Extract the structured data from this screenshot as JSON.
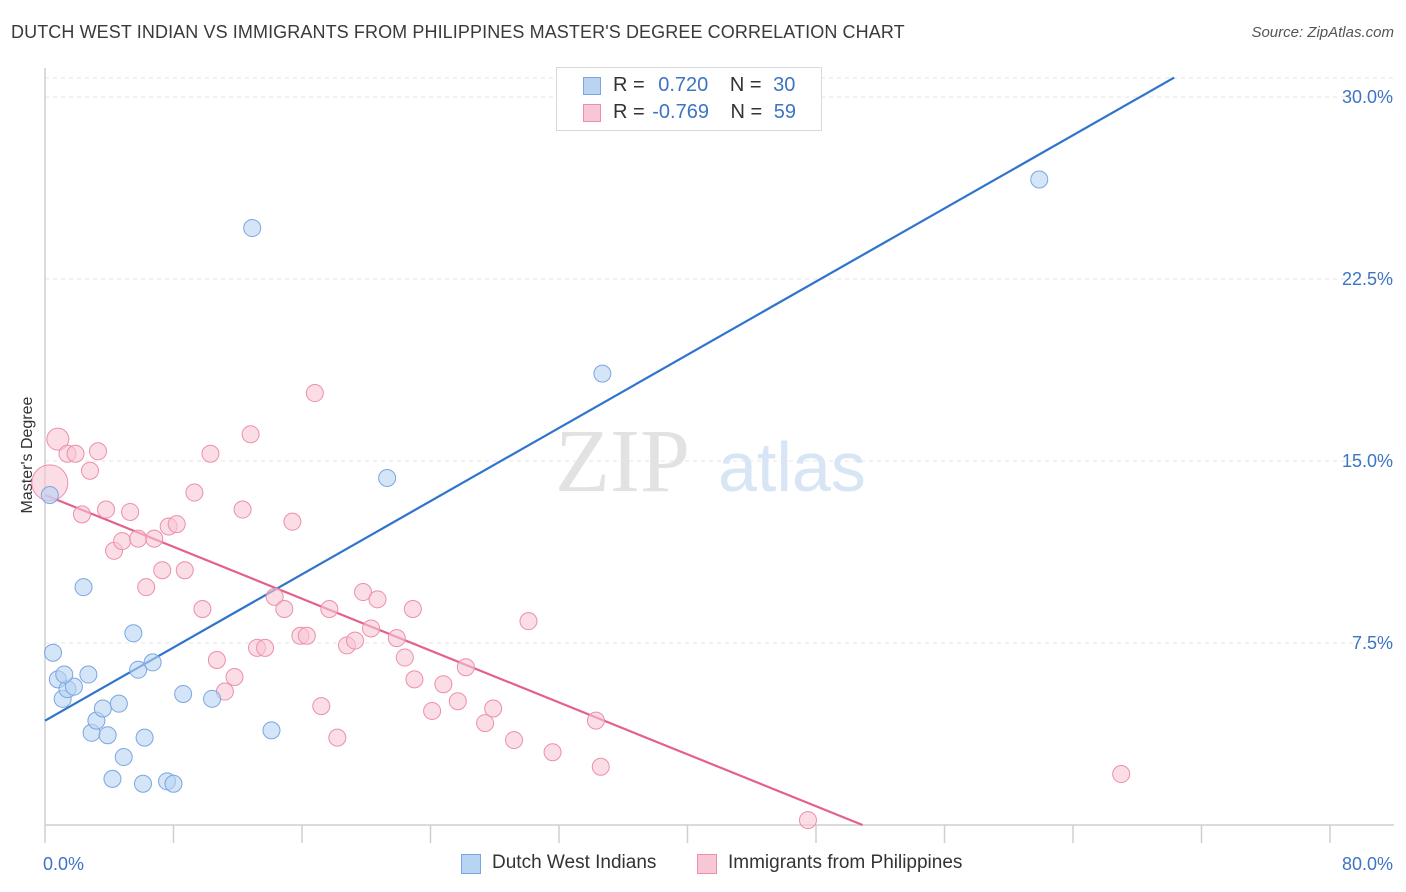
{
  "title": "DUTCH WEST INDIAN VS IMMIGRANTS FROM PHILIPPINES MASTER'S DEGREE CORRELATION CHART",
  "source": "Source: ZipAtlas.com",
  "watermark": {
    "zip": "ZIP",
    "atlas": "atlas"
  },
  "legend": {
    "r_label": "R =",
    "n_label": "N =",
    "rows": [
      {
        "r": "0.720",
        "n": "30"
      },
      {
        "r": "-0.769",
        "n": "59"
      }
    ]
  },
  "bottom_legend": [
    "Dutch West Indians",
    "Immigrants from Philippines"
  ],
  "colors": {
    "blue_fill": "#b9d3f3",
    "blue_stroke": "#7aa6e0",
    "blue_line": "#2f74cc",
    "pink_fill": "#f8c6d4",
    "pink_stroke": "#ec8fab",
    "pink_line": "#e4608f",
    "tick_text": "#3d74c4"
  },
  "chart_data": {
    "type": "scatter",
    "title": "DUTCH WEST INDIAN VS IMMIGRANTS FROM PHILIPPINES MASTER'S DEGREE CORRELATION CHART",
    "xlabel": "",
    "ylabel": "Master's Degree",
    "xlim": [
      0,
      80
    ],
    "ylim": [
      0,
      30
    ],
    "x_tick_labels": [
      "0.0%",
      "80.0%"
    ],
    "y_ticks": [
      7.5,
      15.0,
      22.5,
      30.0
    ],
    "y_tick_labels": [
      "7.5%",
      "15.0%",
      "22.5%",
      "30.0%"
    ],
    "grid": true,
    "series": [
      {
        "name": "Dutch West Indians",
        "r": 0.72,
        "n": 30,
        "trend": {
          "x": [
            0,
            70.3
          ],
          "y": [
            4.3,
            30.8
          ]
        },
        "points": [
          [
            0.3,
            13.6
          ],
          [
            0.5,
            7.1
          ],
          [
            0.8,
            6.0
          ],
          [
            1.1,
            5.2
          ],
          [
            1.4,
            5.6
          ],
          [
            1.8,
            5.7
          ],
          [
            2.4,
            9.8
          ],
          [
            2.7,
            6.2
          ],
          [
            2.9,
            3.8
          ],
          [
            3.2,
            4.3
          ],
          [
            3.6,
            4.8
          ],
          [
            3.9,
            3.7
          ],
          [
            4.2,
            1.9
          ],
          [
            4.6,
            5.0
          ],
          [
            4.9,
            2.8
          ],
          [
            5.5,
            7.9
          ],
          [
            5.8,
            6.4
          ],
          [
            6.1,
            1.7
          ],
          [
            6.2,
            3.6
          ],
          [
            6.7,
            6.7
          ],
          [
            7.6,
            1.8
          ],
          [
            8.0,
            1.7
          ],
          [
            8.6,
            5.4
          ],
          [
            10.4,
            5.2
          ],
          [
            12.9,
            24.6
          ],
          [
            14.1,
            3.9
          ],
          [
            21.3,
            14.3
          ],
          [
            34.7,
            18.6
          ],
          [
            61.9,
            26.6
          ],
          [
            1.2,
            6.2
          ]
        ]
      },
      {
        "name": "Immigrants from Philippines",
        "r": -0.769,
        "n": 59,
        "trend": {
          "x": [
            0,
            50.9
          ],
          "y": [
            13.6,
            0.0
          ]
        },
        "points": [
          [
            0.3,
            14.1
          ],
          [
            0.8,
            15.9
          ],
          [
            1.4,
            15.3
          ],
          [
            1.9,
            15.3
          ],
          [
            2.3,
            12.8
          ],
          [
            2.8,
            14.6
          ],
          [
            3.3,
            15.4
          ],
          [
            3.8,
            13.0
          ],
          [
            4.3,
            11.3
          ],
          [
            4.8,
            11.7
          ],
          [
            5.3,
            12.9
          ],
          [
            5.8,
            11.8
          ],
          [
            6.3,
            9.8
          ],
          [
            6.8,
            11.8
          ],
          [
            7.3,
            10.5
          ],
          [
            7.7,
            12.3
          ],
          [
            8.2,
            12.4
          ],
          [
            8.7,
            10.5
          ],
          [
            9.3,
            13.7
          ],
          [
            9.8,
            8.9
          ],
          [
            10.3,
            15.3
          ],
          [
            10.7,
            6.8
          ],
          [
            11.2,
            5.5
          ],
          [
            11.8,
            6.1
          ],
          [
            12.3,
            13.0
          ],
          [
            12.8,
            16.1
          ],
          [
            13.2,
            7.3
          ],
          [
            13.7,
            7.3
          ],
          [
            14.3,
            9.4
          ],
          [
            14.9,
            8.9
          ],
          [
            15.4,
            12.5
          ],
          [
            15.9,
            7.8
          ],
          [
            16.3,
            7.8
          ],
          [
            16.8,
            17.8
          ],
          [
            17.2,
            4.9
          ],
          [
            17.7,
            8.9
          ],
          [
            18.2,
            3.6
          ],
          [
            18.8,
            7.4
          ],
          [
            19.3,
            7.6
          ],
          [
            19.8,
            9.6
          ],
          [
            20.3,
            8.1
          ],
          [
            20.7,
            9.3
          ],
          [
            21.9,
            7.7
          ],
          [
            22.4,
            6.9
          ],
          [
            22.9,
            8.9
          ],
          [
            23.0,
            6.0
          ],
          [
            24.1,
            4.7
          ],
          [
            24.8,
            5.8
          ],
          [
            25.7,
            5.1
          ],
          [
            26.2,
            6.5
          ],
          [
            27.4,
            4.2
          ],
          [
            27.9,
            4.8
          ],
          [
            29.2,
            3.5
          ],
          [
            30.1,
            8.4
          ],
          [
            31.6,
            3.0
          ],
          [
            34.3,
            4.3
          ],
          [
            34.6,
            2.4
          ],
          [
            47.5,
            0.2
          ],
          [
            67.0,
            2.1
          ]
        ]
      }
    ]
  }
}
